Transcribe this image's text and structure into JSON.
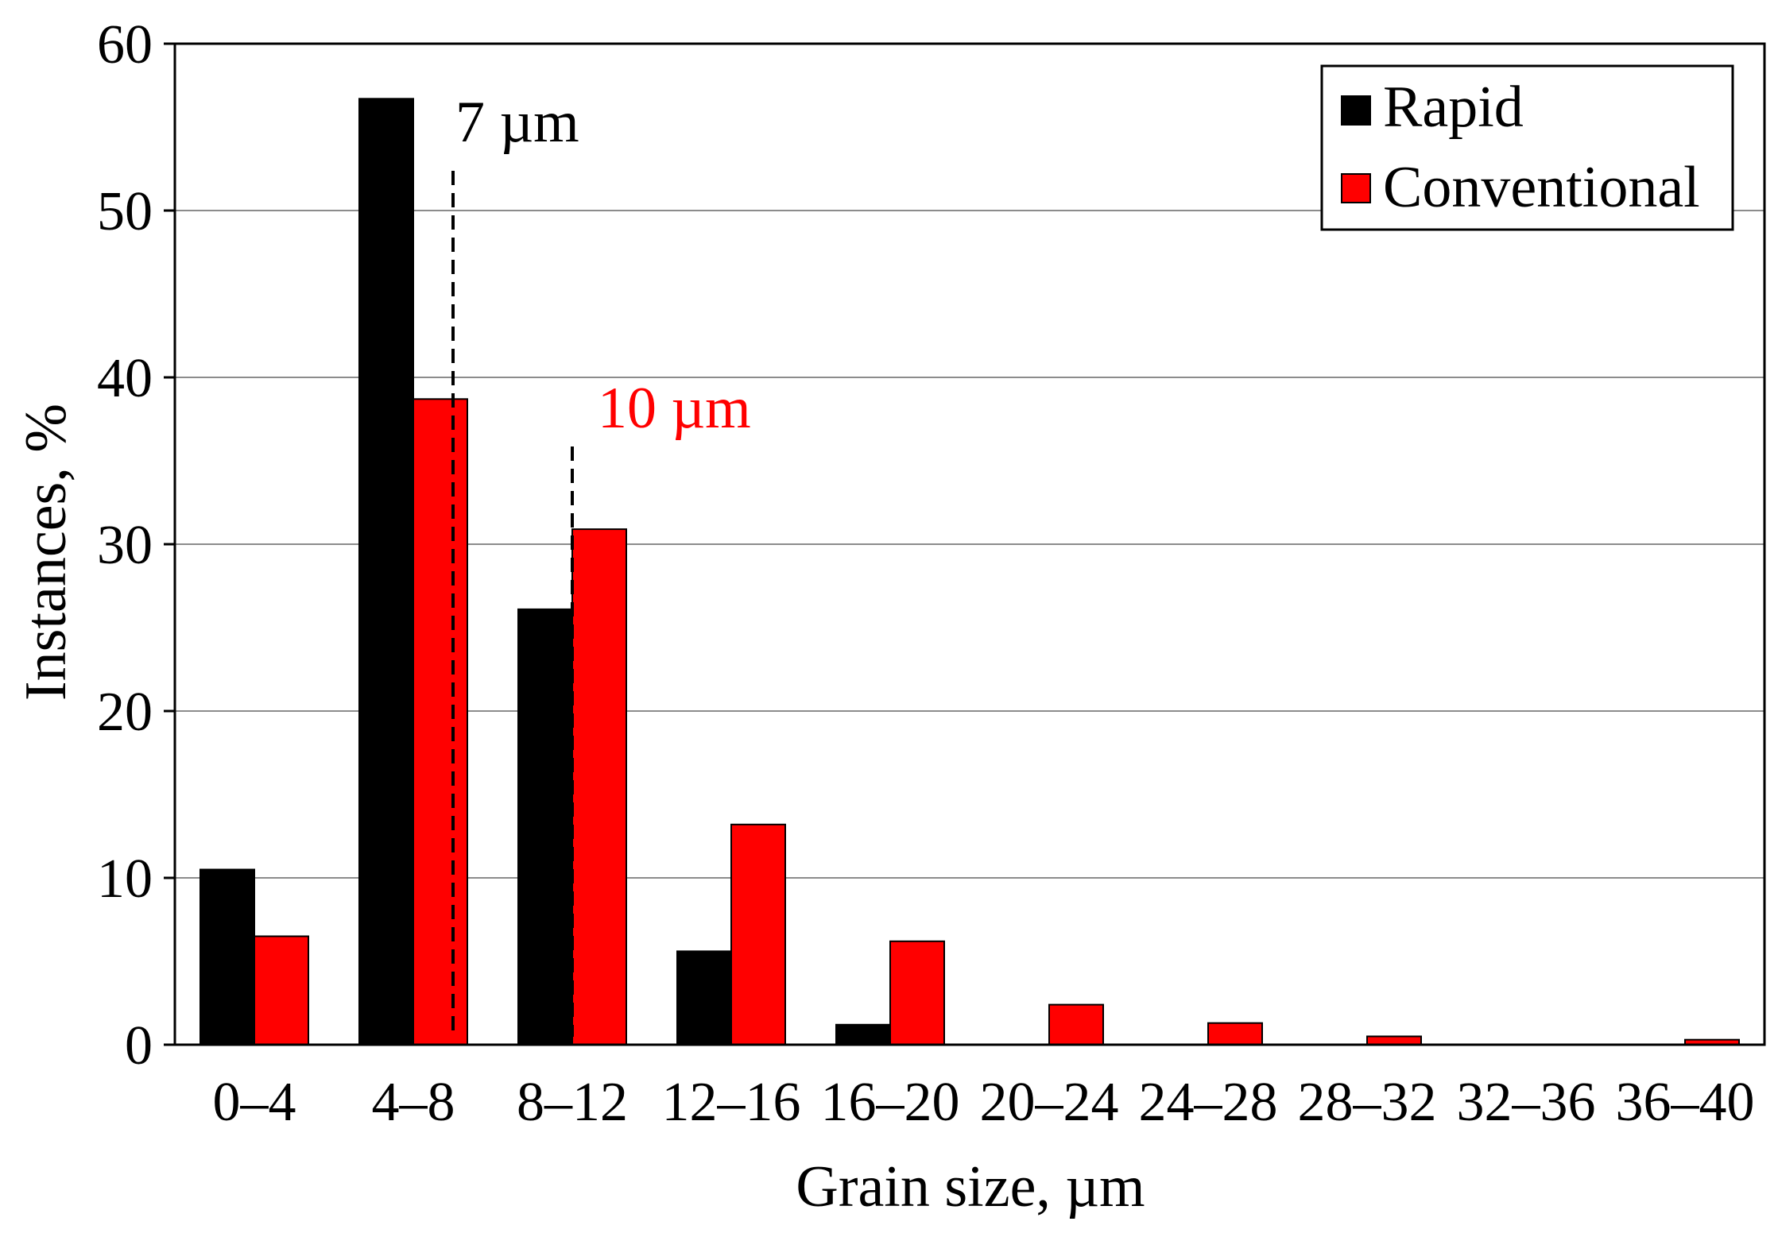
{
  "chart_data": {
    "type": "bar",
    "xlabel": "Grain size, µm",
    "ylabel": "Instances, %",
    "ylim": [
      0,
      60
    ],
    "yticks": [
      "0",
      "10",
      "20",
      "30",
      "40",
      "50",
      "60"
    ],
    "grid": "horizontal",
    "legend_position": "top-right",
    "categories": [
      "0–4",
      "4–8",
      "8–12",
      "12–16",
      "16–20",
      "20–24",
      "24–28",
      "28–32",
      "32–36",
      "36–40"
    ],
    "series": [
      {
        "name": "Rapid",
        "color": "#000000",
        "values": [
          10.5,
          56.7,
          26.1,
          5.6,
          1.2,
          0,
          0,
          0,
          0,
          0
        ]
      },
      {
        "name": "Conventional",
        "color": "#ff0000",
        "values": [
          6.5,
          38.7,
          30.9,
          13.2,
          6.2,
          2.4,
          1.3,
          0.5,
          0,
          0.3
        ]
      }
    ],
    "annotations": [
      {
        "text": "7 µm",
        "x": 7,
        "color": "#000000"
      },
      {
        "text": "10 µm",
        "x": 10,
        "color": "#ff0000"
      }
    ]
  }
}
